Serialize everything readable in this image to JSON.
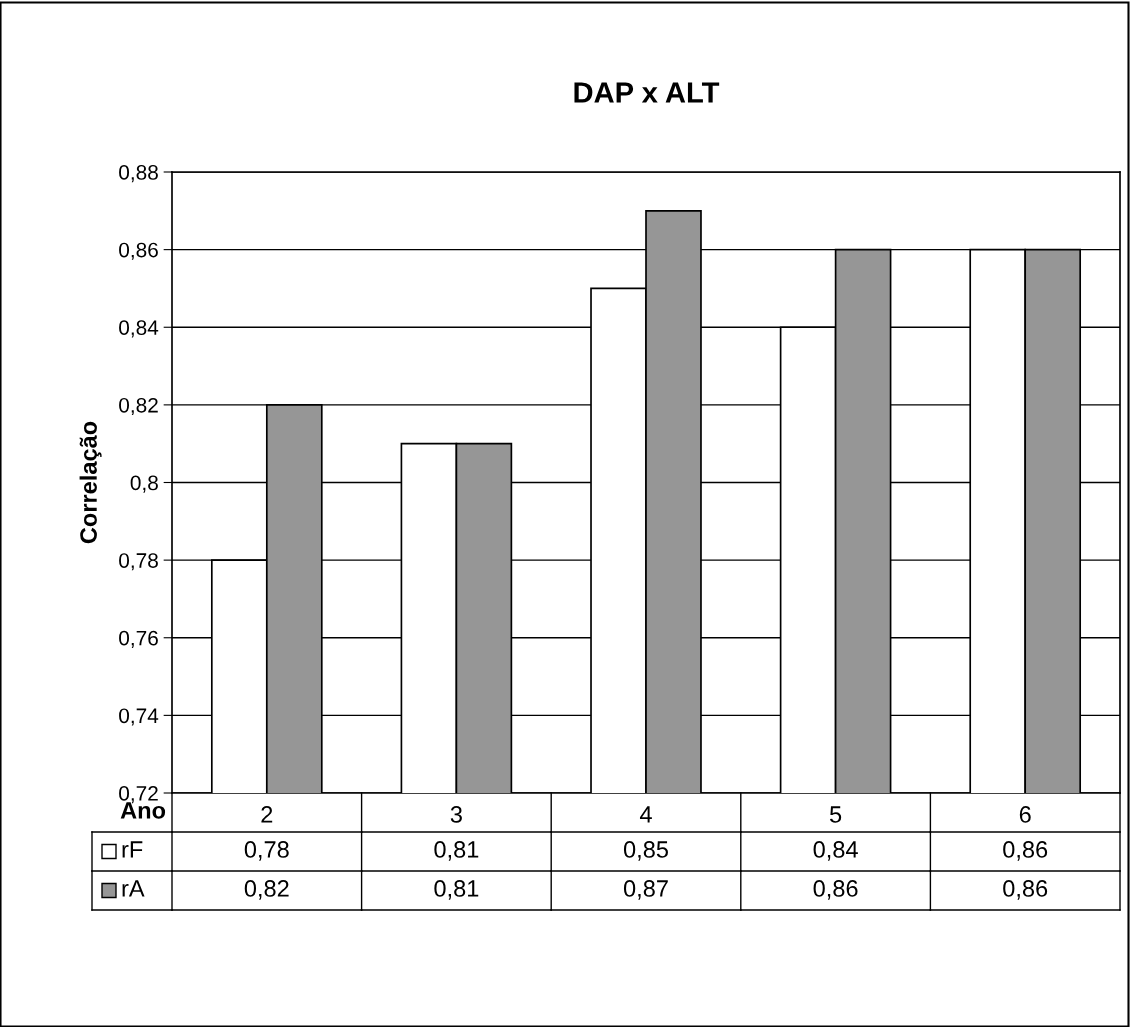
{
  "chart_data": {
    "type": "bar",
    "title": "DAP x ALT",
    "ylabel": "Correlação",
    "xlabel": "Ano",
    "categories": [
      "2",
      "3",
      "4",
      "5",
      "6"
    ],
    "series": [
      {
        "name": "rF",
        "color": "#ffffff",
        "values": [
          0.78,
          0.81,
          0.85,
          0.84,
          0.86
        ],
        "value_labels": [
          "0,78",
          "0,81",
          "0,85",
          "0,84",
          "0,86"
        ]
      },
      {
        "name": "rA",
        "color": "#969696",
        "values": [
          0.82,
          0.81,
          0.87,
          0.86,
          0.86
        ],
        "value_labels": [
          "0,82",
          "0,81",
          "0,87",
          "0,86",
          "0,86"
        ]
      }
    ],
    "ylim": [
      0.72,
      0.88
    ],
    "yticks": [
      {
        "value": 0.72,
        "label": "0,72"
      },
      {
        "value": 0.74,
        "label": "0,74"
      },
      {
        "value": 0.76,
        "label": "0,76"
      },
      {
        "value": 0.78,
        "label": "0,78"
      },
      {
        "value": 0.8,
        "label": "0,8"
      },
      {
        "value": 0.82,
        "label": "0,82"
      },
      {
        "value": 0.84,
        "label": "0,84"
      },
      {
        "value": 0.86,
        "label": "0,86"
      },
      {
        "value": 0.88,
        "label": "0,88"
      }
    ],
    "grid": "y",
    "legend": "bottom"
  }
}
